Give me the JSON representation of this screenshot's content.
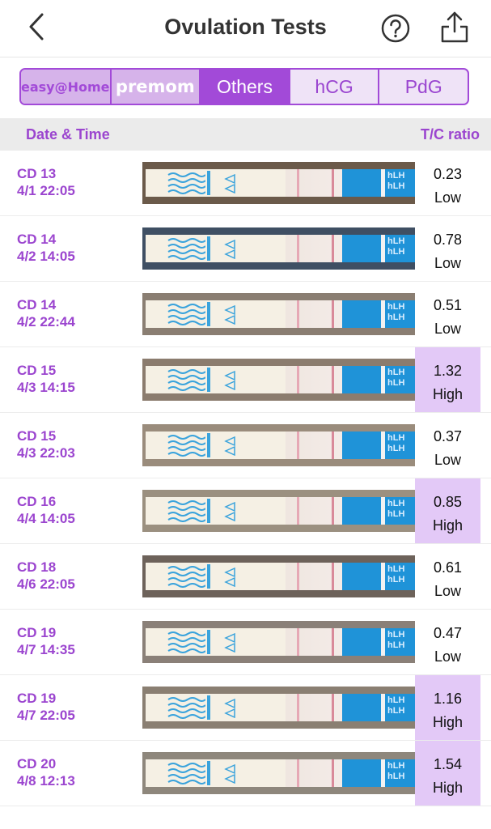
{
  "header": {
    "title": "Ovulation Tests"
  },
  "tabs": [
    {
      "label": "easy@Home",
      "kind": "brand-easy"
    },
    {
      "label": "premom",
      "kind": "brand-premom"
    },
    {
      "label": "Others",
      "kind": "active"
    },
    {
      "label": "hCG",
      "kind": "normal"
    },
    {
      "label": "PdG",
      "kind": "normal"
    }
  ],
  "columns": {
    "date_time": "Date & Time",
    "ratio": "T/C ratio"
  },
  "strip_label": "hLH",
  "rows": [
    {
      "cd": "CD 13",
      "datetime": "4/1 22:05",
      "ratio": "0.23",
      "level": "Low"
    },
    {
      "cd": "CD 14",
      "datetime": "4/2 14:05",
      "ratio": "0.78",
      "level": "Low"
    },
    {
      "cd": "CD 14",
      "datetime": "4/2 22:44",
      "ratio": "0.51",
      "level": "Low"
    },
    {
      "cd": "CD 15",
      "datetime": "4/3 14:15",
      "ratio": "1.32",
      "level": "High"
    },
    {
      "cd": "CD 15",
      "datetime": "4/3 22:03",
      "ratio": "0.37",
      "level": "Low"
    },
    {
      "cd": "CD 16",
      "datetime": "4/4 14:05",
      "ratio": "0.85",
      "level": "High"
    },
    {
      "cd": "CD 18",
      "datetime": "4/6 22:05",
      "ratio": "0.61",
      "level": "Low"
    },
    {
      "cd": "CD 19",
      "datetime": "4/7 14:35",
      "ratio": "0.47",
      "level": "Low"
    },
    {
      "cd": "CD 19",
      "datetime": "4/7 22:05",
      "ratio": "1.16",
      "level": "High"
    },
    {
      "cd": "CD 20",
      "datetime": "4/8 12:13",
      "ratio": "1.54",
      "level": "High"
    }
  ],
  "colors": {
    "accent": "#a24ad8",
    "high_bg": "#e3c9f7",
    "strip_blue": "#1f93d8"
  },
  "icons": {
    "back": "chevron-left-icon",
    "help": "question-circle-icon",
    "share": "share-icon"
  }
}
